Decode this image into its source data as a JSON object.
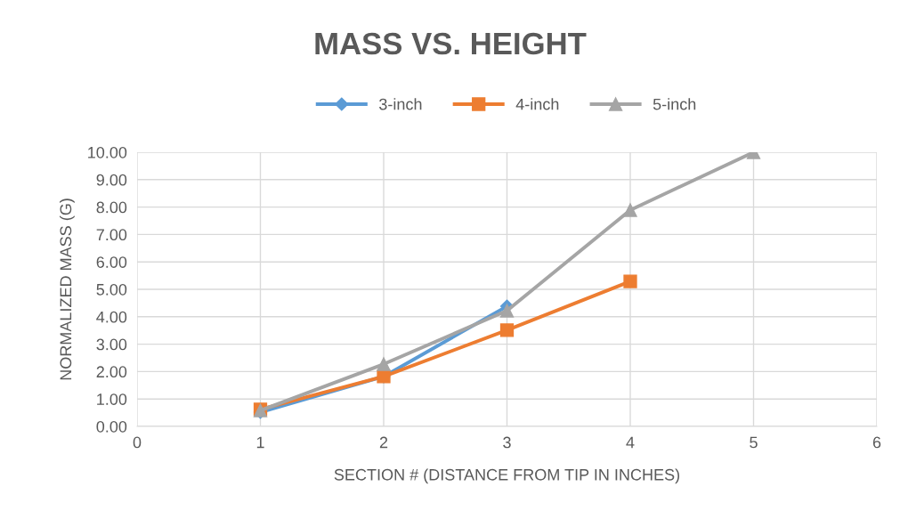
{
  "chart_data": {
    "type": "line",
    "title": "MASS VS. HEIGHT",
    "xlabel": "SECTION # (DISTANCE FROM TIP IN INCHES)",
    "ylabel": "NORMALIZED MASS (G)",
    "series": [
      {
        "name": "3-inch",
        "color": "#5b9bd5",
        "marker": "diamond",
        "x": [
          1,
          2,
          3
        ],
        "values": [
          0.52,
          1.82,
          4.38
        ]
      },
      {
        "name": "4-inch",
        "color": "#ed7d31",
        "marker": "square",
        "x": [
          1,
          2,
          3,
          4
        ],
        "values": [
          0.62,
          1.82,
          3.51,
          5.29
        ]
      },
      {
        "name": "5-inch",
        "color": "#a5a5a5",
        "marker": "triangle",
        "x": [
          1,
          2,
          3,
          4,
          5
        ],
        "values": [
          0.58,
          2.27,
          4.22,
          7.89,
          10.0
        ]
      }
    ],
    "xlim": [
      0,
      6
    ],
    "xticks": [
      0,
      1,
      2,
      3,
      4,
      5,
      6
    ],
    "ylim": [
      0,
      10
    ],
    "yticks": [
      {
        "value": 0,
        "label": "0.00"
      },
      {
        "value": 1,
        "label": "1.00"
      },
      {
        "value": 2,
        "label": "2.00"
      },
      {
        "value": 3,
        "label": "3.00"
      },
      {
        "value": 4,
        "label": "4.00"
      },
      {
        "value": 5,
        "label": "5.00"
      },
      {
        "value": 6,
        "label": "6.00"
      },
      {
        "value": 7,
        "label": "7.00"
      },
      {
        "value": 8,
        "label": "8.00"
      },
      {
        "value": 9,
        "label": "9.00"
      },
      {
        "value": 10,
        "label": "10.00"
      }
    ],
    "grid": true,
    "legend": "top",
    "line_style": "solid"
  }
}
